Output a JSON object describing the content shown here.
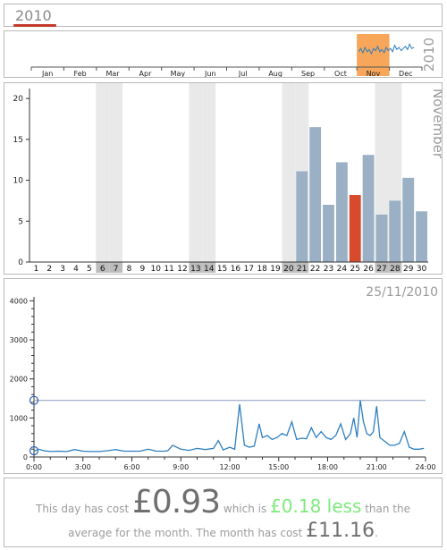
{
  "year_panel": {
    "title": "2010"
  },
  "year_strip": {
    "months": [
      "Jan",
      "Feb",
      "Mar",
      "Apr",
      "May",
      "Jun",
      "Jul",
      "Aug",
      "Sep",
      "Oct",
      "Nov",
      "Dec"
    ],
    "selected_month_index": 10,
    "year_label": "2010",
    "highlight_color": "#f7a65a",
    "line_color": "#2f7fbf"
  },
  "month_panel": {
    "label": "November",
    "bar_color": "#9bb0c4",
    "selected_color": "#d84a2c",
    "weekend_color": "#e9e9e9"
  },
  "day_panel": {
    "date_label": "25/11/2010",
    "line_color": "#2f7fbf"
  },
  "summary": {
    "prefix": "This day has cost",
    "day_cost": "£0.93",
    "mid_text": "which is",
    "diff": "£0.18 less",
    "suffix": "than the",
    "line2_prefix": "average for the month. The month has cost",
    "month_cost": "£11.16",
    "line2_suffix": "."
  },
  "chart_data": [
    {
      "type": "bar",
      "title": "November",
      "categories": [
        "1",
        "2",
        "3",
        "4",
        "5",
        "6",
        "7",
        "8",
        "9",
        "10",
        "11",
        "12",
        "13",
        "14",
        "15",
        "16",
        "17",
        "18",
        "19",
        "20",
        "21",
        "22",
        "23",
        "24",
        "25",
        "26",
        "27",
        "28",
        "29",
        "30"
      ],
      "values": [
        0,
        0,
        0,
        0,
        0,
        0,
        0,
        0,
        0,
        0,
        0,
        0,
        0,
        0,
        0,
        0,
        0,
        0,
        0,
        0,
        11.1,
        16.5,
        7.0,
        12.2,
        8.2,
        13.1,
        5.8,
        7.5,
        10.3,
        6.2
      ],
      "weekend_days": [
        6,
        7,
        13,
        14,
        20,
        21,
        27,
        28
      ],
      "selected_day": 25,
      "yticks": [
        0,
        5,
        10,
        15,
        20
      ],
      "ylim": [
        0,
        21
      ]
    },
    {
      "type": "line",
      "title": "25/11/2010",
      "xticks": [
        "0:00",
        "3:00",
        "6:00",
        "9:00",
        "12:00",
        "15:00",
        "18:00",
        "21:00",
        "24:00"
      ],
      "yticks": [
        0,
        1000,
        2000,
        3000,
        4000
      ],
      "ylim": [
        0,
        4100
      ],
      "xlim": [
        0,
        24
      ],
      "reference_line": 1450,
      "x": [
        0,
        0.3,
        0.6,
        1,
        1.5,
        2,
        2.5,
        3,
        3.5,
        4,
        4.5,
        5,
        5.5,
        6,
        6.5,
        7,
        7.5,
        8,
        8.2,
        8.5,
        9,
        9.5,
        10,
        10.5,
        11,
        11.3,
        11.6,
        12,
        12.3,
        12.6,
        12.9,
        13.2,
        13.5,
        13.8,
        14,
        14.3,
        14.6,
        14.9,
        15.2,
        15.5,
        15.8,
        16.1,
        16.4,
        16.7,
        17,
        17.3,
        17.6,
        17.9,
        18.2,
        18.5,
        18.8,
        19.1,
        19.4,
        19.6,
        19.8,
        20,
        20.2,
        20.4,
        20.6,
        20.8,
        21,
        21.2,
        21.5,
        21.8,
        22.1,
        22.4,
        22.7,
        23,
        23.3,
        23.6,
        23.9
      ],
      "values": [
        150,
        200,
        160,
        140,
        150,
        140,
        190,
        150,
        140,
        140,
        160,
        190,
        150,
        150,
        150,
        200,
        150,
        150,
        160,
        300,
        200,
        170,
        220,
        190,
        220,
        420,
        180,
        250,
        200,
        1350,
        300,
        250,
        280,
        850,
        500,
        550,
        450,
        500,
        600,
        550,
        900,
        450,
        480,
        470,
        750,
        500,
        650,
        500,
        450,
        550,
        850,
        450,
        600,
        1000,
        500,
        1450,
        900,
        600,
        550,
        650,
        1300,
        500,
        400,
        300,
        300,
        350,
        650,
        250,
        200,
        200,
        220
      ]
    }
  ]
}
